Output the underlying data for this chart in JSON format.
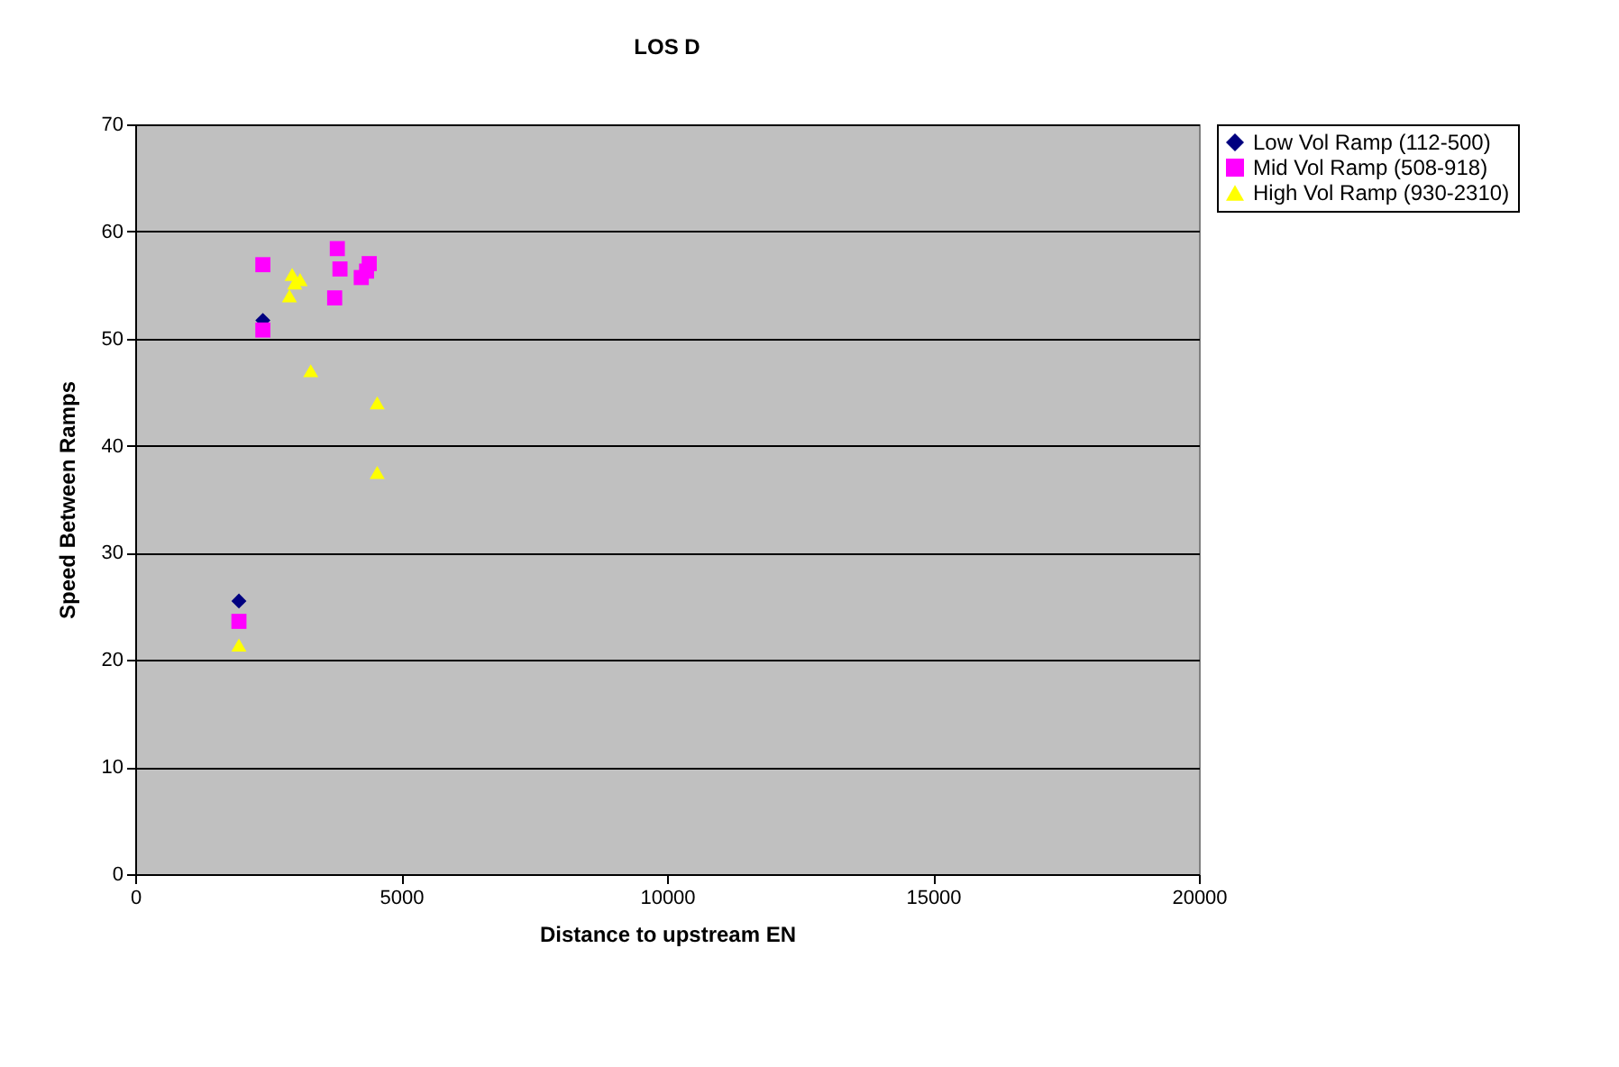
{
  "chart_data": {
    "type": "scatter",
    "title": "LOS D",
    "xlabel": "Distance to upstream EN",
    "ylabel": "Speed Between Ramps",
    "xlim": [
      0,
      20000
    ],
    "xticks": [
      0,
      5000,
      10000,
      15000,
      20000
    ],
    "ylim": [
      0,
      70
    ],
    "yticks": [
      0,
      10,
      20,
      30,
      40,
      50,
      60,
      70
    ],
    "grid": "y",
    "legend": "right",
    "series": [
      {
        "name": "Low Vol Ramp (112-500)",
        "color": "#000080",
        "marker": "diamond",
        "x": [
          1950,
          2400
        ],
        "values": [
          25.5,
          51.7
        ]
      },
      {
        "name": "Mid Vol Ramp (508-918)",
        "color": "#ff00ff",
        "marker": "square",
        "x": [
          1950,
          2400,
          2400,
          3800,
          3850,
          3750,
          4250,
          4400,
          4350
        ],
        "values": [
          23.6,
          50.8,
          56.9,
          58.4,
          56.5,
          53.8,
          55.7,
          57,
          56.3
        ]
      },
      {
        "name": "High Vol Ramp (930-2310)",
        "color": "#ffff00",
        "marker": "triangle",
        "x": [
          1950,
          2900,
          3000,
          2950,
          3100,
          3300,
          4550,
          4550
        ],
        "values": [
          21.4,
          54,
          55.2,
          56,
          55.5,
          47,
          44,
          37.5
        ]
      }
    ]
  }
}
